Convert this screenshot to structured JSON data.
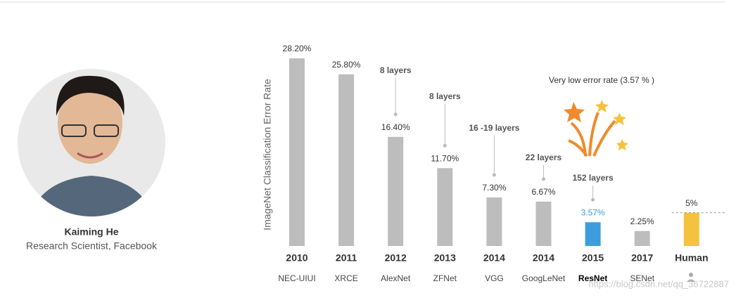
{
  "profile": {
    "name": "Kaiming He",
    "role": "Research Scientist, Facebook"
  },
  "chart_data": {
    "type": "bar",
    "y_label": "ImageNet Classification Error Rate",
    "categories": [
      "2010",
      "2011",
      "2012",
      "2013",
      "2014",
      "2014",
      "2015",
      "2017",
      "Human"
    ],
    "names": [
      "NEC-UIUI",
      "XRCE",
      "AlexNet",
      "ZFNet",
      "VGG",
      "GoogLeNet",
      "ResNet",
      "SENet",
      null
    ],
    "values": [
      28.2,
      25.8,
      16.4,
      11.7,
      7.3,
      6.67,
      3.57,
      2.25,
      5
    ],
    "value_labels": [
      "28.20%",
      "25.80%",
      "16.40%",
      "11.70%",
      "7.30%",
      "6.67%",
      "3.57%",
      "2.25%",
      "5%"
    ],
    "layers": [
      null,
      null,
      "8 layers",
      "8 layers",
      "16 -19 layers",
      "22 layers",
      "152 layers",
      null,
      null
    ],
    "color": "#bdbdbd",
    "colors": [
      "#bdbdbd",
      "#bdbdbd",
      "#bdbdbd",
      "#bdbdbd",
      "#bdbdbd",
      "#bdbdbd",
      "#3d9ddc",
      "#bdbdbd",
      "#f5c23e"
    ],
    "highlight": "ResNet",
    "annotation": "Very low error rate   (3.57 % )",
    "watermark": "https://blog.csdn.net/qq_36722887",
    "ylim": [
      0,
      30
    ]
  }
}
